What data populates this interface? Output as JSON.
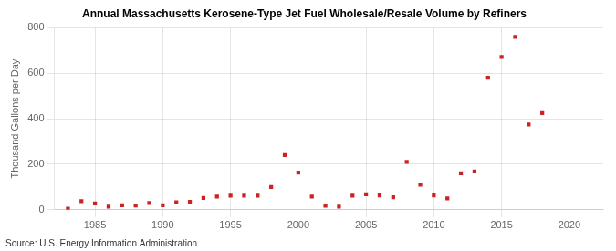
{
  "chart_data": {
    "type": "scatter",
    "title": "Annual Massachusetts Kerosene-Type Jet Fuel Wholesale/Resale Volume by Refiners",
    "ylabel": "Thousand Gallons per Day",
    "source": "Source: U.S. Energy Information Administration",
    "x": [
      1983,
      1984,
      1985,
      1986,
      1987,
      1988,
      1989,
      1990,
      1991,
      1992,
      1993,
      1994,
      1995,
      1996,
      1997,
      1998,
      1999,
      2000,
      2001,
      2002,
      2003,
      2004,
      2005,
      2006,
      2007,
      2008,
      2009,
      2010,
      2011,
      2012,
      2013,
      2014,
      2015,
      2016,
      2017,
      2018,
      2019,
      2020,
      2021
    ],
    "values": [
      5,
      38,
      28,
      14,
      20,
      19,
      30,
      20,
      33,
      35,
      52,
      58,
      62,
      62,
      62,
      100,
      240,
      163,
      58,
      18,
      14,
      62,
      68,
      63,
      55,
      210,
      110,
      63,
      50,
      160,
      168,
      580,
      672,
      760,
      375,
      425,
      null,
      null,
      null
    ],
    "color": "#cc2222",
    "marker": "square",
    "xlim": [
      1982,
      2022.5
    ],
    "xticks": [
      1985,
      1990,
      1995,
      2000,
      2005,
      2010,
      2015,
      2020
    ],
    "ylim": [
      0,
      800
    ],
    "yticks": [
      0,
      200,
      400,
      600,
      800
    ],
    "grid": true
  }
}
